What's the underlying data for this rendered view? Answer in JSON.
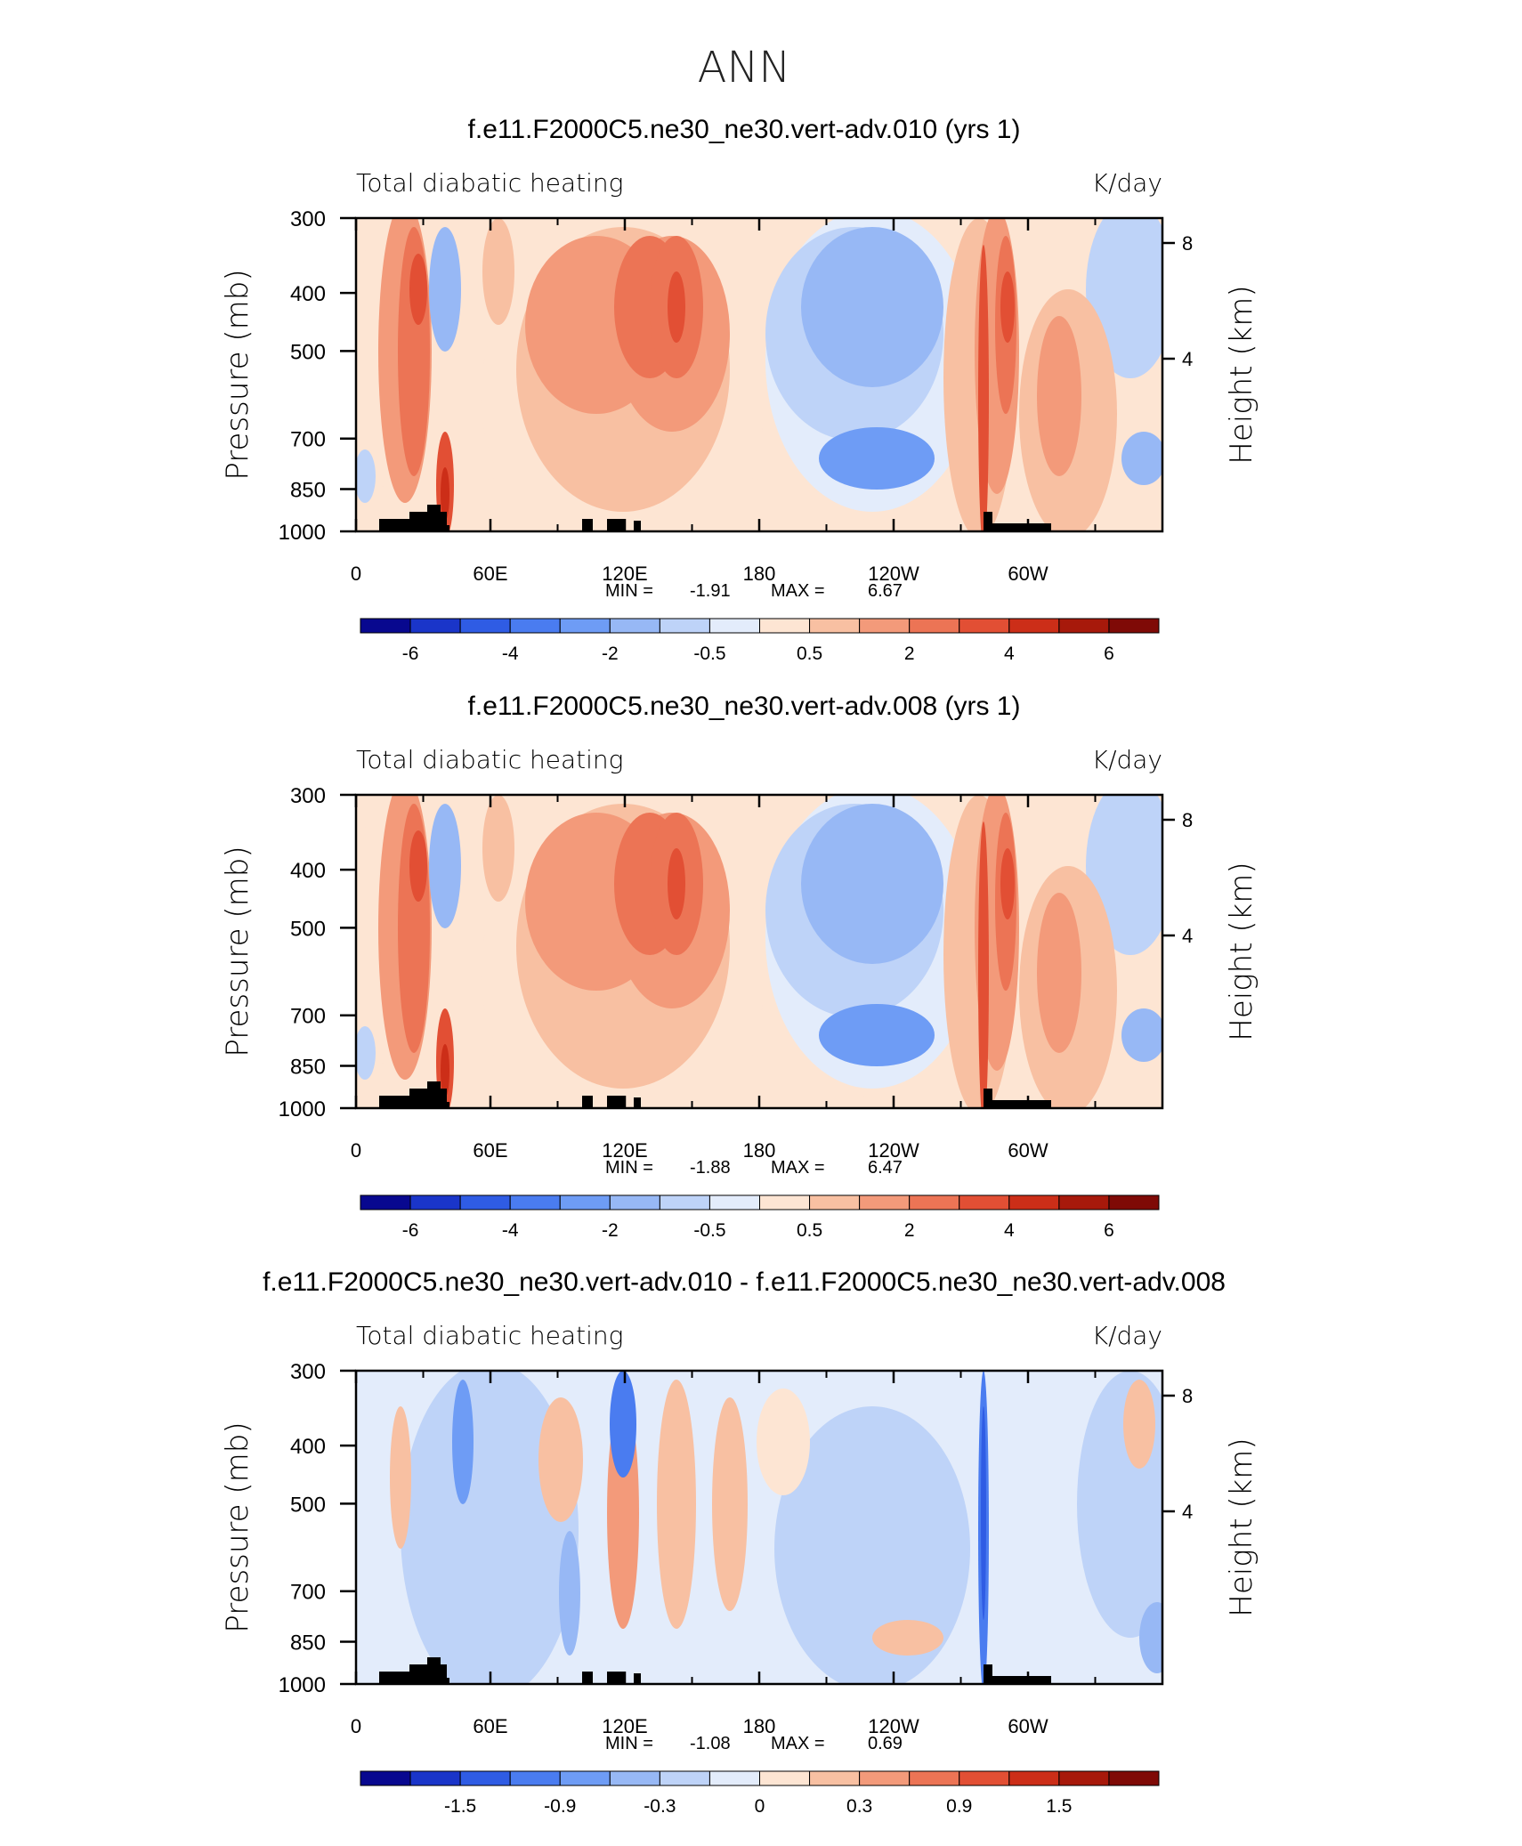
{
  "page_title": "ANN",
  "colors": {
    "coast": "#000000",
    "axis": "#000000",
    "background": "#ffffff"
  },
  "chart_data": [
    {
      "type": "heatmap",
      "title": "f.e11.F2000C5.ne30_ne30.vert-adv.010 (yrs 1)",
      "left_label": "Total diabatic heating",
      "right_label": "K/day",
      "ylabel": "Pressure (mb)",
      "ylabel_right": "Height (km)",
      "y_ticks": [
        "300",
        "400",
        "500",
        "700",
        "850",
        "1000"
      ],
      "y_ticks_right": [
        "8",
        "4"
      ],
      "x_ticks": [
        "0",
        "60E",
        "120E",
        "180",
        "120W",
        "60W"
      ],
      "stats": {
        "min_label": "MIN =",
        "min": "-1.91",
        "max_label": "MAX =",
        "max": "6.67"
      },
      "colorbar_labels": [
        "-6",
        "-4",
        "-2",
        "-0.5",
        "0.5",
        "2",
        "4",
        "6"
      ],
      "colorbar_colors": [
        "#08088f",
        "#1a35c9",
        "#2f5ce4",
        "#4a7cf0",
        "#6e9cf5",
        "#97b8f5",
        "#bed3f8",
        "#e3ecfb",
        "#fde5d3",
        "#f8c0a2",
        "#f39a7a",
        "#ec7455",
        "#e24f34",
        "#cc2e18",
        "#a7190b",
        "#7f0a06"
      ],
      "ylim": [
        1000,
        300
      ]
    },
    {
      "type": "heatmap",
      "title": "f.e11.F2000C5.ne30_ne30.vert-adv.008 (yrs 1)",
      "left_label": "Total diabatic heating",
      "right_label": "K/day",
      "ylabel": "Pressure (mb)",
      "ylabel_right": "Height (km)",
      "y_ticks": [
        "300",
        "400",
        "500",
        "700",
        "850",
        "1000"
      ],
      "y_ticks_right": [
        "8",
        "4"
      ],
      "x_ticks": [
        "0",
        "60E",
        "120E",
        "180",
        "120W",
        "60W"
      ],
      "stats": {
        "min_label": "MIN =",
        "min": "-1.88",
        "max_label": "MAX =",
        "max": "6.47"
      },
      "colorbar_labels": [
        "-6",
        "-4",
        "-2",
        "-0.5",
        "0.5",
        "2",
        "4",
        "6"
      ],
      "colorbar_colors": [
        "#08088f",
        "#1a35c9",
        "#2f5ce4",
        "#4a7cf0",
        "#6e9cf5",
        "#97b8f5",
        "#bed3f8",
        "#e3ecfb",
        "#fde5d3",
        "#f8c0a2",
        "#f39a7a",
        "#ec7455",
        "#e24f34",
        "#cc2e18",
        "#a7190b",
        "#7f0a06"
      ],
      "ylim": [
        1000,
        300
      ]
    },
    {
      "type": "heatmap",
      "title": "f.e11.F2000C5.ne30_ne30.vert-adv.010 - f.e11.F2000C5.ne30_ne30.vert-adv.008",
      "left_label": "Total diabatic heating",
      "right_label": "K/day",
      "ylabel": "Pressure (mb)",
      "ylabel_right": "Height (km)",
      "y_ticks": [
        "300",
        "400",
        "500",
        "700",
        "850",
        "1000"
      ],
      "y_ticks_right": [
        "8",
        "4"
      ],
      "x_ticks": [
        "0",
        "60E",
        "120E",
        "180",
        "120W",
        "60W"
      ],
      "stats": {
        "min_label": "MIN =",
        "min": "-1.08",
        "max_label": "MAX =",
        "max": "0.69"
      },
      "colorbar_labels": [
        "-1.5",
        "-0.9",
        "-0.3",
        "0",
        "0.3",
        "0.9",
        "1.5"
      ],
      "colorbar_colors": [
        "#08088f",
        "#1a35c9",
        "#2f5ce4",
        "#4a7cf0",
        "#6e9cf5",
        "#97b8f5",
        "#bed3f8",
        "#e3ecfb",
        "#fde5d3",
        "#f8c0a2",
        "#f39a7a",
        "#ec7455",
        "#e24f34",
        "#cc2e18",
        "#a7190b",
        "#7f0a06"
      ],
      "ylim": [
        1000,
        300
      ]
    }
  ]
}
